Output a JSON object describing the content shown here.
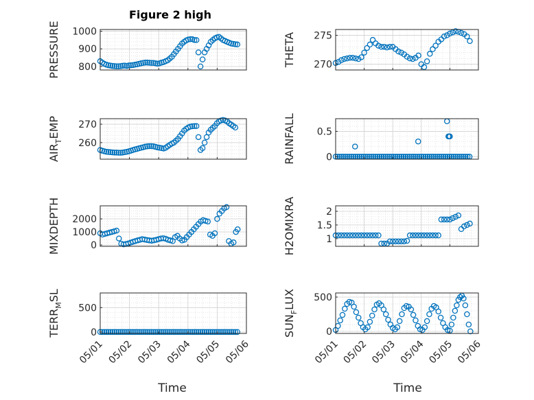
{
  "figure": {
    "title": "Figure 2 high",
    "xlabel": "Time"
  },
  "chart_data": [
    {
      "type": "scatter",
      "ylabel": "PRESSURE",
      "ylim": [
        780,
        1010
      ],
      "yticks": [
        800,
        900,
        1000
      ],
      "ytick_labels": [
        "800",
        "900",
        "1000"
      ],
      "xlim": [
        0,
        5
      ],
      "xticks": [
        0,
        1,
        2,
        3,
        4,
        5
      ],
      "xtick_labels": [
        "05/01",
        "05/02",
        "05/03",
        "05/04",
        "05/05",
        "05/06"
      ],
      "grid": true,
      "x": [
        0.0,
        0.07,
        0.14,
        0.21,
        0.28,
        0.35,
        0.42,
        0.49,
        0.56,
        0.63,
        0.7,
        0.77,
        0.84,
        0.91,
        0.98,
        1.05,
        1.12,
        1.19,
        1.26,
        1.33,
        1.4,
        1.47,
        1.54,
        1.61,
        1.68,
        1.75,
        1.82,
        1.89,
        1.96,
        2.03,
        2.1,
        2.17,
        2.24,
        2.31,
        2.38,
        2.45,
        2.52,
        2.59,
        2.66,
        2.73,
        2.8,
        2.87,
        2.94,
        3.01,
        3.08,
        3.15,
        3.22,
        3.29,
        3.36,
        3.43,
        3.5,
        3.57,
        3.64,
        3.71,
        3.78,
        3.85,
        3.92,
        3.99,
        4.06,
        4.13,
        4.2,
        4.27,
        4.34,
        4.41,
        4.48,
        4.55,
        4.62,
        4.69
      ],
      "y": [
        830,
        822,
        815,
        810,
        807,
        805,
        803,
        802,
        801,
        801,
        802,
        804,
        805,
        803,
        806,
        807,
        808,
        810,
        812,
        815,
        818,
        820,
        822,
        822,
        821,
        820,
        820,
        818,
        816,
        818,
        822,
        825,
        830,
        835,
        845,
        855,
        870,
        885,
        900,
        915,
        930,
        940,
        948,
        953,
        955,
        955,
        950,
        950,
        880,
        800,
        840,
        880,
        900,
        920,
        940,
        950,
        960,
        965,
        968,
        960,
        950,
        945,
        940,
        935,
        930,
        928,
        926,
        925
      ]
    },
    {
      "type": "scatter",
      "ylabel": "THETA",
      "ylim": [
        269,
        276
      ],
      "yticks": [
        270,
        275
      ],
      "ytick_labels": [
        "270",
        "275"
      ],
      "xlim": [
        0,
        5
      ],
      "xticks": [
        0,
        1,
        2,
        3,
        4,
        5
      ],
      "xtick_labels": [
        "05/01",
        "05/02",
        "05/03",
        "05/04",
        "05/05",
        "05/06"
      ],
      "grid": true,
      "x": [
        0.0,
        0.1,
        0.2,
        0.3,
        0.4,
        0.5,
        0.6,
        0.7,
        0.8,
        0.9,
        1.0,
        1.1,
        1.2,
        1.3,
        1.4,
        1.5,
        1.6,
        1.7,
        1.8,
        1.9,
        2.0,
        2.1,
        2.2,
        2.3,
        2.4,
        2.5,
        2.6,
        2.7,
        2.8,
        2.9,
        3.0,
        3.1,
        3.2,
        3.3,
        3.4,
        3.5,
        3.6,
        3.7,
        3.8,
        3.9,
        4.0,
        4.1,
        4.2,
        4.3,
        4.4,
        4.5,
        4.6,
        4.7
      ],
      "y": [
        270.2,
        270.4,
        270.7,
        270.9,
        271.0,
        271.1,
        271.1,
        271.0,
        270.9,
        271.2,
        272.0,
        272.8,
        273.4,
        274.2,
        273.6,
        273.2,
        273.0,
        273.0,
        272.9,
        273.0,
        273.0,
        272.6,
        272.2,
        272.0,
        271.7,
        271.3,
        271.0,
        270.9,
        271.1,
        271.5,
        270.0,
        269.5,
        270.5,
        271.8,
        272.6,
        273.2,
        273.9,
        274.3,
        274.8,
        275.0,
        275.3,
        275.5,
        275.7,
        275.6,
        275.4,
        275.2,
        274.8,
        274.0
      ]
    },
    {
      "type": "scatter",
      "ylabel": "AIR_TEMP",
      "ylim": [
        251,
        273
      ],
      "yticks": [
        260,
        270
      ],
      "ytick_labels": [
        "260",
        "270"
      ],
      "xlim": [
        0,
        5
      ],
      "xticks": [
        0,
        1,
        2,
        3,
        4,
        5
      ],
      "xtick_labels": [
        "05/01",
        "05/02",
        "05/03",
        "05/04",
        "05/05",
        "05/06"
      ],
      "grid": true,
      "x": [
        0.0,
        0.07,
        0.14,
        0.21,
        0.28,
        0.35,
        0.42,
        0.49,
        0.56,
        0.63,
        0.7,
        0.77,
        0.84,
        0.91,
        0.98,
        1.05,
        1.12,
        1.19,
        1.26,
        1.33,
        1.4,
        1.47,
        1.54,
        1.61,
        1.68,
        1.75,
        1.82,
        1.89,
        1.96,
        2.03,
        2.1,
        2.17,
        2.24,
        2.31,
        2.38,
        2.45,
        2.52,
        2.59,
        2.66,
        2.73,
        2.8,
        2.87,
        2.94,
        3.01,
        3.08,
        3.15,
        3.22,
        3.29,
        3.36,
        3.43,
        3.5,
        3.57,
        3.64,
        3.71,
        3.78,
        3.85,
        3.92,
        3.99,
        4.06,
        4.13,
        4.2,
        4.27,
        4.34,
        4.41,
        4.48,
        4.55,
        4.62
      ],
      "y": [
        256,
        255.6,
        255.3,
        255.0,
        254.9,
        254.8,
        254.7,
        254.6,
        254.6,
        254.5,
        254.5,
        254.6,
        254.8,
        255.0,
        255.3,
        255.6,
        256.0,
        256.3,
        256.6,
        256.9,
        257.2,
        257.5,
        257.8,
        258.0,
        258.1,
        258.1,
        258.0,
        257.7,
        257.4,
        257.2,
        257.0,
        256.8,
        257.2,
        258.0,
        258.8,
        259.5,
        260.0,
        261.0,
        262.0,
        263.5,
        265.0,
        266.5,
        267.5,
        268.2,
        268.7,
        268.9,
        269.0,
        269.0,
        263.0,
        256.0,
        257.0,
        260.0,
        263.0,
        265.5,
        267.0,
        268.0,
        269.0,
        270.5,
        271.5,
        272.0,
        272.3,
        272.0,
        271.5,
        270.5,
        269.8,
        269.0,
        268.2
      ]
    },
    {
      "type": "scatter",
      "ylabel": "RAINFALL",
      "ylim": [
        -0.05,
        0.75
      ],
      "yticks": [
        0,
        0.5
      ],
      "ytick_labels": [
        "0",
        "0.5"
      ],
      "xlim": [
        0,
        5
      ],
      "xticks": [
        0,
        1,
        2,
        3,
        4,
        5
      ],
      "xtick_labels": [
        "05/01",
        "05/02",
        "05/03",
        "05/04",
        "05/05",
        "05/06"
      ],
      "grid": true,
      "x": [
        0.0,
        0.07,
        0.14,
        0.21,
        0.28,
        0.35,
        0.42,
        0.49,
        0.56,
        0.63,
        0.7,
        0.77,
        0.84,
        0.91,
        0.98,
        1.05,
        1.12,
        1.19,
        1.26,
        1.33,
        1.4,
        1.47,
        1.54,
        1.61,
        1.68,
        1.75,
        1.82,
        1.89,
        1.96,
        2.03,
        2.1,
        2.17,
        2.24,
        2.31,
        2.38,
        2.45,
        2.52,
        2.59,
        2.66,
        2.73,
        2.8,
        2.87,
        2.94,
        3.01,
        3.08,
        3.15,
        3.22,
        3.29,
        3.36,
        3.43,
        3.5,
        3.57,
        3.64,
        3.71,
        3.78,
        3.85,
        3.92,
        3.99,
        4.06,
        4.13,
        4.2,
        4.27,
        4.34,
        4.41,
        4.48,
        4.55,
        4.62,
        4.69,
        0.68,
        2.89,
        3.9,
        3.95,
        3.97,
        4.0
      ],
      "y": [
        0,
        0,
        0,
        0,
        0,
        0,
        0,
        0,
        0,
        0,
        0,
        0,
        0,
        0,
        0,
        0,
        0,
        0,
        0,
        0,
        0,
        0,
        0,
        0,
        0,
        0,
        0,
        0,
        0,
        0,
        0,
        0,
        0,
        0,
        0,
        0,
        0,
        0,
        0,
        0,
        0,
        0,
        0,
        0,
        0,
        0,
        0,
        0,
        0,
        0,
        0,
        0,
        0,
        0,
        0,
        0,
        0,
        0,
        0,
        0,
        0,
        0,
        0,
        0,
        0,
        0,
        0,
        0,
        0.2,
        0.3,
        0.7,
        0.4,
        0.4,
        0.4
      ]
    },
    {
      "type": "scatter",
      "ylabel": "MIXDEPTH",
      "ylim": [
        -100,
        3000
      ],
      "yticks": [
        0,
        1000,
        2000
      ],
      "ytick_labels": [
        "0",
        "1000",
        "2000"
      ],
      "xlim": [
        0,
        5
      ],
      "xticks": [
        0,
        1,
        2,
        3,
        4,
        5
      ],
      "xtick_labels": [
        "05/01",
        "05/02",
        "05/03",
        "05/04",
        "05/05",
        "05/06"
      ],
      "grid": true,
      "x": [
        0.0,
        0.08,
        0.16,
        0.24,
        0.32,
        0.4,
        0.48,
        0.56,
        0.64,
        0.72,
        0.8,
        0.88,
        0.96,
        1.04,
        1.12,
        1.2,
        1.28,
        1.36,
        1.44,
        1.52,
        1.6,
        1.68,
        1.76,
        1.84,
        1.92,
        2.0,
        2.08,
        2.16,
        2.24,
        2.32,
        2.4,
        2.48,
        2.56,
        2.64,
        2.72,
        2.8,
        2.88,
        2.96,
        3.04,
        3.12,
        3.2,
        3.28,
        3.36,
        3.44,
        3.52,
        3.6,
        3.68,
        3.76,
        3.84,
        3.92,
        4.0,
        4.08,
        4.16,
        4.24,
        4.32,
        4.4,
        4.48,
        4.56,
        4.64,
        4.7
      ],
      "y": [
        900,
        800,
        850,
        900,
        950,
        1000,
        1050,
        1100,
        500,
        100,
        50,
        80,
        120,
        180,
        250,
        300,
        350,
        400,
        450,
        420,
        380,
        350,
        330,
        360,
        400,
        450,
        500,
        520,
        480,
        400,
        350,
        300,
        600,
        700,
        500,
        350,
        400,
        600,
        800,
        1000,
        1200,
        1400,
        1600,
        1800,
        1900,
        1850,
        1800,
        800,
        700,
        900,
        2000,
        2400,
        2600,
        2800,
        2900,
        300,
        100,
        200,
        1000,
        1200
      ]
    },
    {
      "type": "scatter",
      "ylabel": "H2OMIXRA",
      "ylim": [
        0.72,
        2.2
      ],
      "yticks": [
        1,
        1.5,
        2
      ],
      "ytick_labels": [
        "1",
        "1.5",
        "2"
      ],
      "xlim": [
        0,
        5
      ],
      "xticks": [
        0,
        1,
        2,
        3,
        4,
        5
      ],
      "xtick_labels": [
        "05/01",
        "05/02",
        "05/03",
        "05/04",
        "05/05",
        "05/06"
      ],
      "grid": true,
      "x": [
        0.0,
        0.1,
        0.2,
        0.3,
        0.4,
        0.5,
        0.6,
        0.7,
        0.8,
        0.9,
        1.0,
        1.1,
        1.2,
        1.3,
        1.4,
        1.5,
        1.6,
        1.7,
        1.8,
        1.9,
        2.0,
        2.1,
        2.2,
        2.3,
        2.4,
        2.5,
        2.6,
        2.7,
        2.8,
        2.9,
        3.0,
        3.1,
        3.2,
        3.3,
        3.4,
        3.5,
        3.6,
        3.7,
        3.8,
        3.9,
        4.0,
        4.1,
        4.2,
        4.3,
        4.4,
        4.5,
        4.6,
        4.7
      ],
      "y": [
        1.12,
        1.12,
        1.12,
        1.12,
        1.12,
        1.12,
        1.12,
        1.12,
        1.12,
        1.12,
        1.12,
        1.12,
        1.12,
        1.12,
        1.12,
        1.12,
        0.82,
        0.82,
        0.82,
        0.9,
        0.9,
        0.9,
        0.9,
        0.9,
        0.9,
        0.92,
        1.12,
        1.12,
        1.12,
        1.12,
        1.12,
        1.12,
        1.12,
        1.12,
        1.12,
        1.12,
        1.12,
        1.7,
        1.7,
        1.7,
        1.7,
        1.75,
        1.8,
        1.85,
        1.35,
        1.45,
        1.5,
        1.55
      ]
    },
    {
      "type": "scatter",
      "ylabel": "TERR_MSL",
      "ylim": [
        -30,
        800
      ],
      "yticks": [
        0,
        500
      ],
      "ytick_labels": [
        "0",
        "500"
      ],
      "xlim": [
        0,
        5
      ],
      "xticks": [
        0,
        1,
        2,
        3,
        4,
        5
      ],
      "xtick_labels": [
        "05/01",
        "05/02",
        "05/03",
        "05/04",
        "05/05",
        "05/06"
      ],
      "grid": true,
      "x": [
        0.0,
        0.07,
        0.14,
        0.21,
        0.28,
        0.35,
        0.42,
        0.49,
        0.56,
        0.63,
        0.7,
        0.77,
        0.84,
        0.91,
        0.98,
        1.05,
        1.12,
        1.19,
        1.26,
        1.33,
        1.4,
        1.47,
        1.54,
        1.61,
        1.68,
        1.75,
        1.82,
        1.89,
        1.96,
        2.03,
        2.1,
        2.17,
        2.24,
        2.31,
        2.38,
        2.45,
        2.52,
        2.59,
        2.66,
        2.73,
        2.8,
        2.87,
        2.94,
        3.01,
        3.08,
        3.15,
        3.22,
        3.29,
        3.36,
        3.43,
        3.5,
        3.57,
        3.64,
        3.71,
        3.78,
        3.85,
        3.92,
        3.99,
        4.06,
        4.13,
        4.2,
        4.27,
        4.34,
        4.41,
        4.48,
        4.55,
        4.62,
        4.69
      ],
      "y": [
        0,
        0,
        0,
        0,
        0,
        0,
        0,
        0,
        0,
        0,
        0,
        0,
        0,
        0,
        0,
        0,
        0,
        0,
        0,
        0,
        0,
        0,
        0,
        0,
        0,
        0,
        0,
        0,
        0,
        0,
        0,
        0,
        0,
        0,
        0,
        0,
        0,
        0,
        0,
        0,
        0,
        0,
        0,
        0,
        0,
        0,
        0,
        0,
        0,
        0,
        0,
        0,
        0,
        0,
        0,
        0,
        0,
        0,
        0,
        0,
        0,
        0,
        0,
        0,
        0,
        0,
        0,
        0
      ]
    },
    {
      "type": "scatter",
      "ylabel": "SUN_FLUX",
      "ylim": [
        -30,
        560
      ],
      "yticks": [
        0,
        500
      ],
      "ytick_labels": [
        "0",
        "500"
      ],
      "xlim": [
        0,
        5
      ],
      "xticks": [
        0,
        1,
        2,
        3,
        4,
        5
      ],
      "xtick_labels": [
        "05/01",
        "05/02",
        "05/03",
        "05/04",
        "05/05",
        "05/06"
      ],
      "grid": true,
      "x": [
        0.0,
        0.08,
        0.16,
        0.24,
        0.32,
        0.4,
        0.48,
        0.56,
        0.64,
        0.72,
        0.8,
        0.88,
        0.96,
        1.04,
        1.12,
        1.2,
        1.28,
        1.36,
        1.44,
        1.52,
        1.6,
        1.68,
        1.76,
        1.84,
        1.92,
        2.0,
        2.08,
        2.16,
        2.24,
        2.32,
        2.4,
        2.48,
        2.56,
        2.64,
        2.72,
        2.8,
        2.88,
        2.96,
        3.04,
        3.12,
        3.2,
        3.28,
        3.36,
        3.44,
        3.52,
        3.6,
        3.68,
        3.76,
        3.84,
        3.92,
        4.0,
        4.06,
        4.12,
        4.18,
        4.24,
        4.3,
        4.36,
        4.42,
        4.48,
        4.54,
        4.6,
        4.66,
        4.72
      ],
      "y": [
        20,
        80,
        160,
        240,
        330,
        400,
        430,
        420,
        360,
        280,
        200,
        120,
        60,
        30,
        60,
        140,
        230,
        320,
        390,
        410,
        380,
        320,
        250,
        170,
        100,
        50,
        30,
        60,
        150,
        250,
        340,
        370,
        360,
        320,
        240,
        160,
        80,
        30,
        20,
        60,
        150,
        250,
        330,
        370,
        350,
        290,
        200,
        120,
        60,
        20,
        10,
        100,
        200,
        300,
        380,
        460,
        500,
        520,
        480,
        380,
        250,
        100,
        0
      ]
    }
  ]
}
